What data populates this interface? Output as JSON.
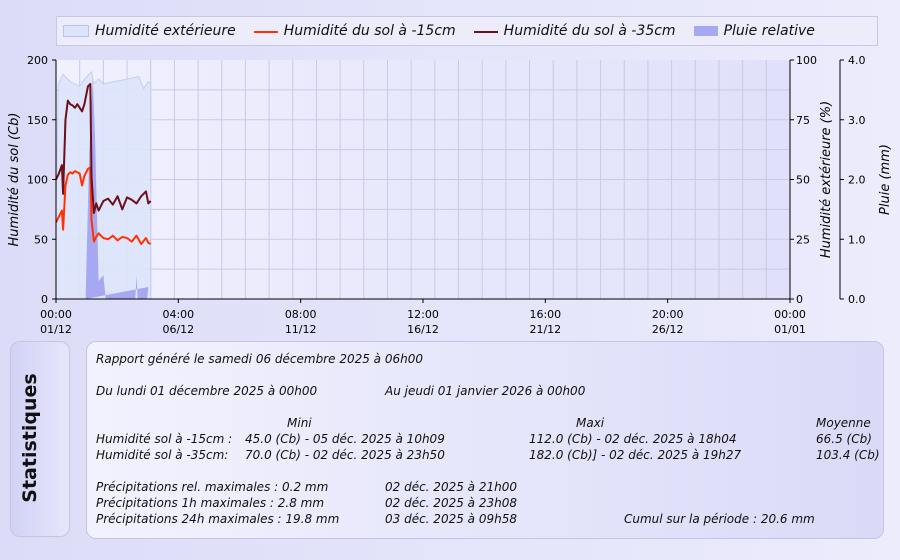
{
  "legend": {
    "items": [
      {
        "label": "Humidité extérieure"
      },
      {
        "label": "Humidité du sol à -15cm"
      },
      {
        "label": "Humidité du sol à -35cm"
      },
      {
        "label": "Pluie relative"
      }
    ]
  },
  "chart_data": {
    "type": "line",
    "xlabel": "",
    "x_ticks": [
      {
        "time": "00:00",
        "date": "01/12"
      },
      {
        "time": "04:00",
        "date": "06/12"
      },
      {
        "time": "08:00",
        "date": "11/12"
      },
      {
        "time": "12:00",
        "date": "16/12"
      },
      {
        "time": "16:00",
        "date": "21/12"
      },
      {
        "time": "20:00",
        "date": "26/12"
      },
      {
        "time": "00:00",
        "date": "01/01"
      }
    ],
    "x_range_days": [
      0,
      31
    ],
    "y_left": {
      "label": "Humidité du sol (Cb)",
      "range": [
        0,
        200
      ],
      "ticks": [
        "0",
        "50",
        "100",
        "150",
        "200"
      ]
    },
    "y_right1": {
      "label": "Humidité extérieure (%)",
      "range": [
        0,
        100
      ],
      "ticks": [
        "0",
        "25",
        "50",
        "75",
        "100"
      ]
    },
    "y_right2": {
      "label": "Pluie (mm)",
      "range": [
        0,
        4
      ],
      "ticks": [
        "0.0",
        "1.0",
        "2.0",
        "3.0",
        "4.0"
      ]
    },
    "grid": true,
    "colors": {
      "humidity_area": "#dde4fb",
      "soil15": "#ff3300",
      "soil35": "#6e0f1a",
      "rain": "#a7a8f2"
    },
    "series": [
      {
        "name": "Humidité extérieure",
        "axis": "y_right1",
        "kind": "area",
        "x": [
          0,
          0.1,
          0.3,
          0.6,
          1.0,
          1.2,
          1.5,
          1.6,
          1.8,
          2.0,
          2.5,
          3.0,
          3.5,
          3.7,
          3.9,
          4.0
        ],
        "y": [
          40,
          90,
          94,
          91,
          89,
          92,
          95,
          90,
          92,
          90,
          91,
          92,
          93,
          88,
          91,
          90
        ]
      },
      {
        "name": "Humidité du sol à -15cm",
        "axis": "y_left",
        "kind": "line",
        "x": [
          0,
          0.1,
          0.25,
          0.3,
          0.4,
          0.5,
          0.6,
          0.7,
          0.8,
          0.9,
          1.0,
          1.1,
          1.2,
          1.35,
          1.45,
          1.5,
          1.6,
          1.7,
          1.8,
          2.0,
          2.2,
          2.4,
          2.6,
          2.8,
          3.0,
          3.2,
          3.4,
          3.6,
          3.8,
          3.9,
          4.0
        ],
        "y": [
          64,
          68,
          74,
          58,
          95,
          104,
          106,
          105,
          107,
          106,
          105,
          95,
          103,
          109,
          110,
          66,
          48,
          52,
          55,
          51,
          50,
          53,
          49,
          52,
          51,
          48,
          53,
          46,
          51,
          47,
          46
        ]
      },
      {
        "name": "Humidité du sol à -35cm",
        "axis": "y_left",
        "kind": "line",
        "x": [
          0,
          0.1,
          0.25,
          0.3,
          0.4,
          0.5,
          0.6,
          0.7,
          0.8,
          0.9,
          1.0,
          1.1,
          1.2,
          1.35,
          1.45,
          1.5,
          1.6,
          1.7,
          1.8,
          2.0,
          2.2,
          2.4,
          2.6,
          2.8,
          3.0,
          3.2,
          3.4,
          3.6,
          3.8,
          3.9,
          4.0
        ],
        "y": [
          100,
          104,
          112,
          88,
          150,
          166,
          163,
          162,
          160,
          163,
          160,
          157,
          163,
          178,
          180,
          102,
          72,
          80,
          74,
          82,
          84,
          79,
          86,
          75,
          85,
          83,
          80,
          86,
          90,
          80,
          82
        ]
      },
      {
        "name": "Pluie relative",
        "axis": "y_right2",
        "kind": "rain",
        "x": [
          1.25,
          1.4,
          1.55,
          1.65,
          1.8,
          2.0,
          2.1,
          3.35,
          3.4,
          3.45,
          3.85,
          3.9
        ],
        "y": [
          0,
          2.4,
          3.7,
          2.7,
          0.3,
          0.4,
          0,
          0,
          0.4,
          0,
          0,
          0.2
        ]
      }
    ]
  },
  "stats": {
    "tab_label": "Statistiques",
    "generated": "Rapport généré le samedi 06 décembre 2025 à 06h00",
    "from": "Du lundi 01 décembre 2025 à 00h00",
    "to": "Au jeudi 01 janvier 2026 à 00h00",
    "col_min": "Mini",
    "col_max": "Maxi",
    "col_avg": "Moyenne",
    "rows": [
      {
        "label": "Humidité sol à -15cm :",
        "min": "45.0 (Cb) - 05 déc. 2025 à 10h09",
        "max": "112.0 (Cb) - 02 déc. 2025 à 18h04",
        "avg": "66.5 (Cb)"
      },
      {
        "label": "Humidité sol à -35cm:",
        "min": "70.0 (Cb) - 02 déc. 2025 à 23h50",
        "max": "182.0 (Cb)] - 02 déc. 2025 à 19h27",
        "avg": "103.4 (Cb)"
      }
    ],
    "precip": [
      {
        "label": "Précipitations rel. maximales : 0.2 mm",
        "date": "02 déc. 2025 à 21h00"
      },
      {
        "label": "Précipitations 1h maximales : 2.8 mm",
        "date": "02 déc. 2025 à 23h08"
      },
      {
        "label": "Précipitations 24h maximales : 19.8 mm",
        "date": "03 déc. 2025 à 09h58"
      }
    ],
    "cumul": "Cumul sur la période : 20.6 mm"
  }
}
